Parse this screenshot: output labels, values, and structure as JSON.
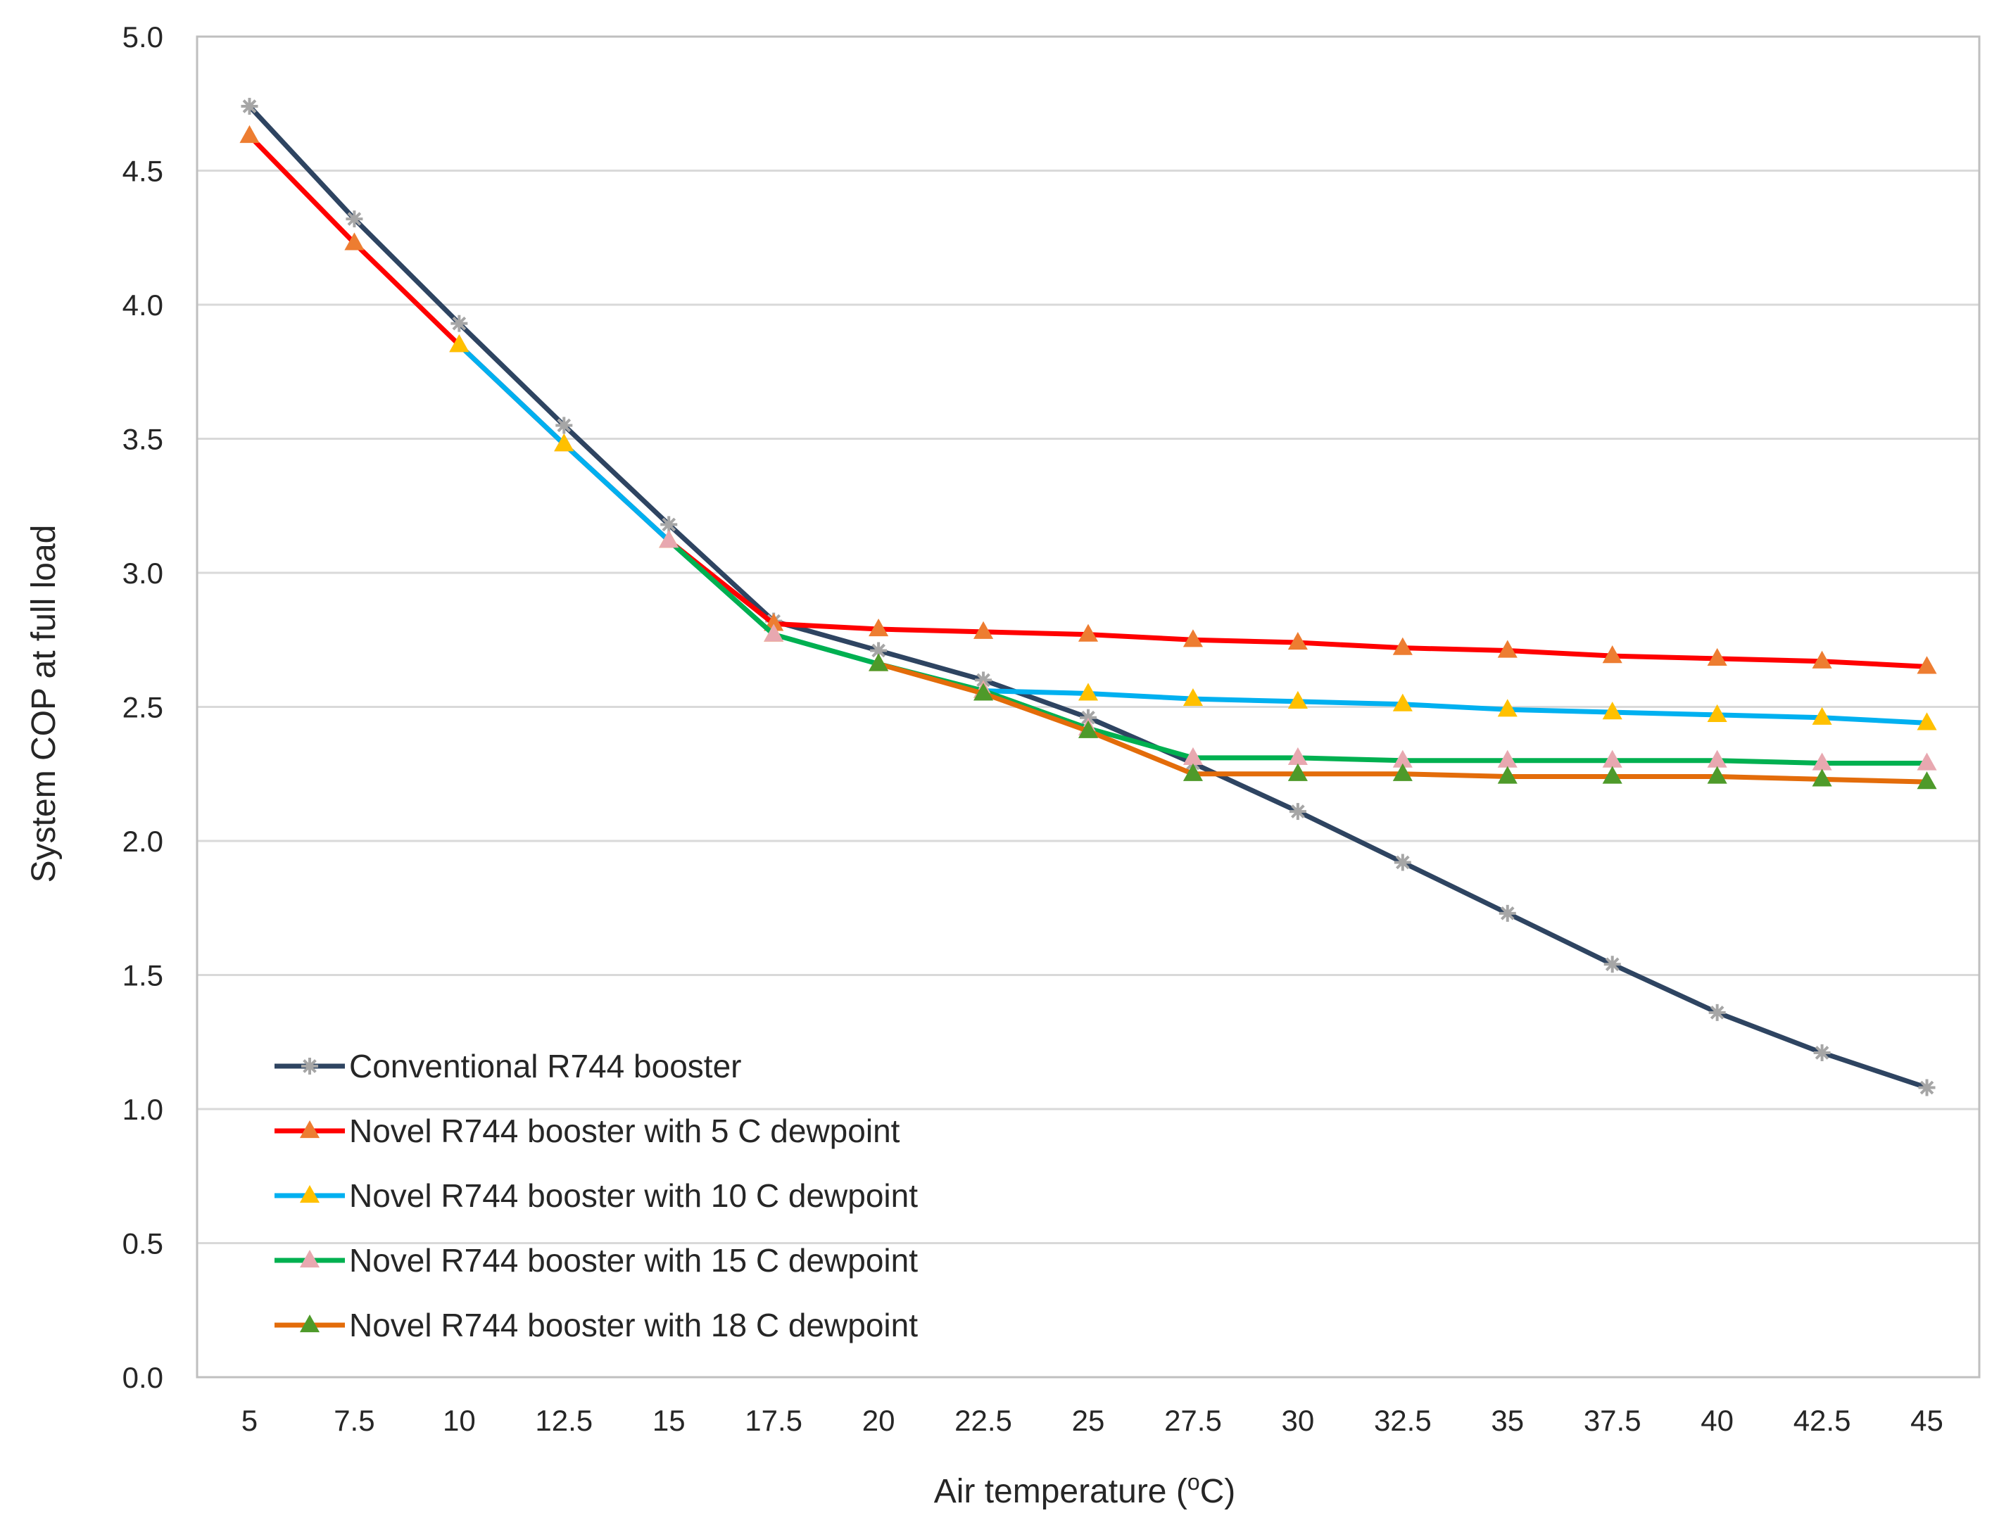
{
  "chart_data": {
    "type": "line",
    "title": "",
    "xlabel": "Air temperature  (",
    "xlabel_sup": "o",
    "xlabel_tail": "C)",
    "ylabel": "System  COP at full load",
    "ylim": [
      0,
      5
    ],
    "yticks": [
      "0.0",
      "0.5",
      "1.0",
      "1.5",
      "2.0",
      "2.5",
      "3.0",
      "3.5",
      "4.0",
      "4.5",
      "5.0"
    ],
    "categories": [
      "5",
      "7.5",
      "10",
      "12.5",
      "15",
      "17.5",
      "20",
      "22.5",
      "25",
      "27.5",
      "30",
      "32.5",
      "35",
      "37.5",
      "40",
      "42.5",
      "45"
    ],
    "grid": true,
    "legend_position": "bottom-left",
    "series": [
      {
        "name": "Conventional R744 booster",
        "color": "#2e4461",
        "marker": "star",
        "marker_color": "#a6a6a6",
        "values": [
          4.74,
          4.32,
          3.93,
          3.55,
          3.18,
          2.82,
          2.71,
          2.6,
          2.46,
          2.29,
          2.11,
          1.92,
          1.73,
          1.54,
          1.36,
          1.21,
          1.08
        ]
      },
      {
        "name": "Novel R744 booster with 5 C dewpoint",
        "color": "#ff0000",
        "marker": "triangle",
        "marker_color": "#ed7d31",
        "values": [
          4.63,
          4.23,
          3.85,
          3.48,
          3.12,
          2.81,
          2.79,
          2.78,
          2.77,
          2.75,
          2.74,
          2.72,
          2.71,
          2.69,
          2.68,
          2.67,
          2.65
        ]
      },
      {
        "name": "Novel R744 booster with 10 C dewpoint",
        "color": "#00b0f0",
        "marker": "triangle",
        "marker_color": "#ffc000",
        "values": [
          null,
          null,
          3.85,
          3.48,
          3.12,
          2.77,
          2.66,
          2.56,
          2.55,
          2.53,
          2.52,
          2.51,
          2.49,
          2.48,
          2.47,
          2.46,
          2.44
        ]
      },
      {
        "name": "Novel R744 booster with 15 C dewpoint",
        "color": "#00b050",
        "marker": "triangle",
        "marker_color": "#e8a8b0",
        "values": [
          null,
          null,
          null,
          null,
          3.12,
          2.77,
          2.66,
          2.56,
          2.42,
          2.31,
          2.31,
          2.3,
          2.3,
          2.3,
          2.3,
          2.29,
          2.29
        ]
      },
      {
        "name": "Novel R744 booster with 18 C dewpoint",
        "color": "#e36c0a",
        "marker": "triangle",
        "marker_color": "#4e9a2a",
        "values": [
          null,
          null,
          null,
          null,
          null,
          null,
          2.66,
          2.55,
          2.41,
          2.25,
          2.25,
          2.25,
          2.24,
          2.24,
          2.24,
          2.23,
          2.22
        ]
      }
    ]
  }
}
